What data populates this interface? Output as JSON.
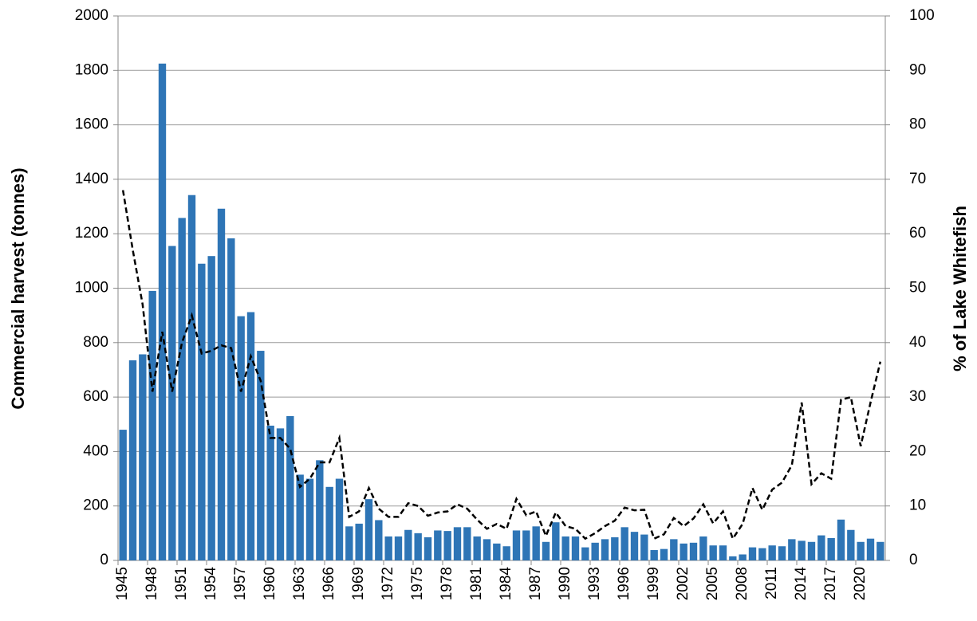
{
  "chart_data": {
    "type": "bar_line",
    "y_label": "Commercial harvest (tonnes)",
    "y2_label": "% of Lake Whitefish",
    "categories": [
      "1945",
      null,
      null,
      "1948",
      null,
      null,
      "1951",
      null,
      null,
      "1954",
      null,
      null,
      "1957",
      null,
      null,
      "1960",
      null,
      null,
      "1963",
      null,
      null,
      "1966",
      null,
      null,
      "1969",
      null,
      null,
      "1972",
      null,
      null,
      "1975",
      null,
      null,
      "1978",
      null,
      null,
      "1981",
      null,
      null,
      "1984",
      null,
      null,
      "1987",
      null,
      null,
      "1990",
      null,
      null,
      "1993",
      null,
      null,
      "1996",
      null,
      null,
      "1999",
      null,
      null,
      "2002",
      null,
      null,
      "2005",
      null,
      null,
      "2008",
      null,
      null,
      "2011",
      null,
      null,
      "2014",
      null,
      null,
      "2017",
      null,
      null,
      "2020",
      null,
      null
    ],
    "series": [
      {
        "type": "bar",
        "color": "#2e75b6",
        "values": [
          480,
          735,
          757,
          990,
          1825,
          1155,
          1258,
          1342,
          1090,
          1118,
          1292,
          1183,
          897,
          912,
          770,
          495,
          485,
          530,
          315,
          300,
          368,
          270,
          300,
          125,
          135,
          225,
          148,
          88,
          88,
          112,
          100,
          85,
          110,
          108,
          122,
          122,
          88,
          78,
          62,
          52,
          110,
          110,
          125,
          68,
          140,
          88,
          88,
          48,
          65,
          78,
          85,
          122,
          105,
          95,
          38,
          42,
          78,
          62,
          65,
          88,
          55,
          55,
          15,
          22,
          48,
          45,
          55,
          52,
          78,
          72,
          68,
          92,
          82,
          150,
          112,
          68,
          80,
          68
        ]
      },
      {
        "type": "line",
        "axis": "y2",
        "color": "#000000",
        "dashed": true,
        "values": [
          68,
          57,
          47,
          31,
          42,
          31,
          40,
          45,
          38,
          38.5,
          39.5,
          39,
          31,
          37.5,
          33,
          22.5,
          22.5,
          20.5,
          13.5,
          15,
          18,
          18,
          22.5,
          8,
          9,
          13.3,
          9.5,
          8,
          8,
          10.5,
          10,
          8.2,
          8.8,
          9,
          10.3,
          9.5,
          7.5,
          5.8,
          6.7,
          5.8,
          11.3,
          8.3,
          9,
          4.5,
          8.8,
          6.3,
          5.8,
          4,
          5,
          6.3,
          7.3,
          9.7,
          9.2,
          9.3,
          4,
          4.8,
          7.8,
          6.3,
          7.7,
          10.3,
          6.8,
          9,
          4,
          6.7,
          13.3,
          9.3,
          13,
          14.3,
          17.5,
          29,
          14,
          16,
          15,
          29.5,
          30,
          21,
          29,
          36.5
        ]
      }
    ],
    "ylim": [
      0,
      2000
    ],
    "yticks": [
      0,
      200,
      400,
      600,
      800,
      1000,
      1200,
      1400,
      1600,
      1800,
      2000
    ],
    "y2lim": [
      0,
      100
    ],
    "y2ticks": [
      0,
      10,
      20,
      30,
      40,
      50,
      60,
      70,
      80,
      90,
      100
    ],
    "grid": true
  }
}
